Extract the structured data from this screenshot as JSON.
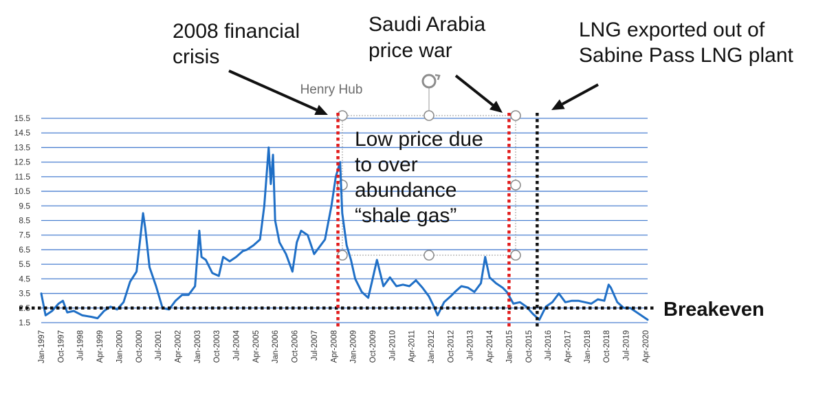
{
  "chart_data": {
    "type": "line",
    "title": "Henry Hub",
    "xlabel": "",
    "ylabel": "",
    "ylim": [
      1.5,
      15.5
    ],
    "y_ticks": [
      "1.5",
      "2.5",
      "3.5",
      "4.5",
      "5.5",
      "6.5",
      "7.5",
      "8.5",
      "9.5",
      "10.5",
      "11.5",
      "12.5",
      "13.5",
      "14.5",
      "15.5"
    ],
    "x_ticks": [
      "Jan-1997",
      "Oct-1997",
      "Jul-1998",
      "Apr-1999",
      "Jan-2000",
      "Oct-2000",
      "Jul-2001",
      "Apr-2002",
      "Jan-2003",
      "Oct-2003",
      "Jul-2004",
      "Apr-2005",
      "Jan-2006",
      "Oct-2006",
      "Jul-2007",
      "Apr-2008",
      "Jan-2009",
      "Oct-2009",
      "Jul-2010",
      "Apr-2011",
      "Jan-2012",
      "Oct-2012",
      "Jul-2013",
      "Apr-2014",
      "Jan-2015",
      "Oct-2015",
      "Jul-2016",
      "Apr-2017",
      "Jan-2018",
      "Oct-2018",
      "Jul-2019",
      "Apr-2020"
    ],
    "grid": true,
    "legend": "none",
    "series": [
      {
        "color": "#1f6fc6",
        "x": [
          "1997-01",
          "1997-03",
          "1997-06",
          "1997-09",
          "1997-11",
          "1998-01",
          "1998-04",
          "1998-08",
          "1998-12",
          "1999-03",
          "1999-06",
          "1999-09",
          "1999-12",
          "2000-03",
          "2000-06",
          "2000-09",
          "2000-12",
          "2001-01",
          "2001-03",
          "2001-06",
          "2001-09",
          "2001-12",
          "2002-03",
          "2002-06",
          "2002-09",
          "2002-12",
          "2003-02",
          "2003-03",
          "2003-05",
          "2003-08",
          "2003-11",
          "2004-01",
          "2004-04",
          "2004-07",
          "2004-10",
          "2004-12",
          "2005-03",
          "2005-06",
          "2005-08",
          "2005-09",
          "2005-10",
          "2005-11",
          "2005-12",
          "2006-01",
          "2006-03",
          "2006-06",
          "2006-09",
          "2006-11",
          "2007-01",
          "2007-04",
          "2007-07",
          "2007-10",
          "2007-12",
          "2008-03",
          "2008-05",
          "2008-07",
          "2008-08",
          "2008-10",
          "2008-12",
          "2009-02",
          "2009-05",
          "2009-08",
          "2009-10",
          "2009-12",
          "2010-03",
          "2010-06",
          "2010-09",
          "2010-12",
          "2011-03",
          "2011-06",
          "2011-09",
          "2011-12",
          "2012-02",
          "2012-04",
          "2012-07",
          "2012-10",
          "2012-12",
          "2013-03",
          "2013-06",
          "2013-09",
          "2013-12",
          "2014-02",
          "2014-04",
          "2014-07",
          "2014-10",
          "2014-12",
          "2015-03",
          "2015-06",
          "2015-09",
          "2015-12",
          "2016-03",
          "2016-06",
          "2016-09",
          "2016-12",
          "2017-03",
          "2017-06",
          "2017-09",
          "2017-12",
          "2018-03",
          "2018-06",
          "2018-09",
          "2018-11",
          "2018-12",
          "2019-03",
          "2019-06",
          "2019-09",
          "2019-12",
          "2020-03",
          "2020-05"
        ],
        "values": [
          3.5,
          2.0,
          2.3,
          2.8,
          3.0,
          2.2,
          2.3,
          2.0,
          1.9,
          1.8,
          2.3,
          2.6,
          2.4,
          2.9,
          4.3,
          5.0,
          9.0,
          8.0,
          5.3,
          4.0,
          2.5,
          2.4,
          3.0,
          3.4,
          3.4,
          4.0,
          7.8,
          6.0,
          5.8,
          4.9,
          4.7,
          6.0,
          5.7,
          6.0,
          6.4,
          6.5,
          6.8,
          7.2,
          9.5,
          11.5,
          13.5,
          11.0,
          13.0,
          8.5,
          7.0,
          6.2,
          5.0,
          7.0,
          7.8,
          7.5,
          6.2,
          6.8,
          7.2,
          9.5,
          11.5,
          12.5,
          9.0,
          6.8,
          5.8,
          4.5,
          3.6,
          3.2,
          4.5,
          5.8,
          4.0,
          4.6,
          4.0,
          4.1,
          4.0,
          4.4,
          3.9,
          3.3,
          2.7,
          2.0,
          2.9,
          3.3,
          3.6,
          4.0,
          3.9,
          3.6,
          4.2,
          6.0,
          4.6,
          4.2,
          3.9,
          3.6,
          2.8,
          2.9,
          2.6,
          2.1,
          1.7,
          2.6,
          2.9,
          3.5,
          2.9,
          3.0,
          3.0,
          2.9,
          2.8,
          3.1,
          3.0,
          4.1,
          3.9,
          2.9,
          2.5,
          2.5,
          2.2,
          1.9,
          1.7
        ]
      }
    ],
    "reference_lines": [
      {
        "orientation": "horizontal",
        "value": 2.5,
        "label": "Breakeven",
        "color": "#111111"
      },
      {
        "orientation": "vertical",
        "at": "2008-06",
        "color": "#e21b1b"
      },
      {
        "orientation": "vertical",
        "at": "2015-01",
        "color": "#e21b1b"
      },
      {
        "orientation": "vertical",
        "at": "2016-02",
        "color": "#111111"
      }
    ],
    "annotations": [
      {
        "lines": [
          "2008 financial",
          "crisis"
        ]
      },
      {
        "lines": [
          "Saudi Arabia",
          "price war"
        ]
      },
      {
        "lines": [
          "LNG exported out of",
          "Sabine Pass LNG plant"
        ]
      },
      {
        "lines": [
          "Low price due",
          "to over",
          "abundance",
          "“shale gas”"
        ]
      }
    ]
  }
}
